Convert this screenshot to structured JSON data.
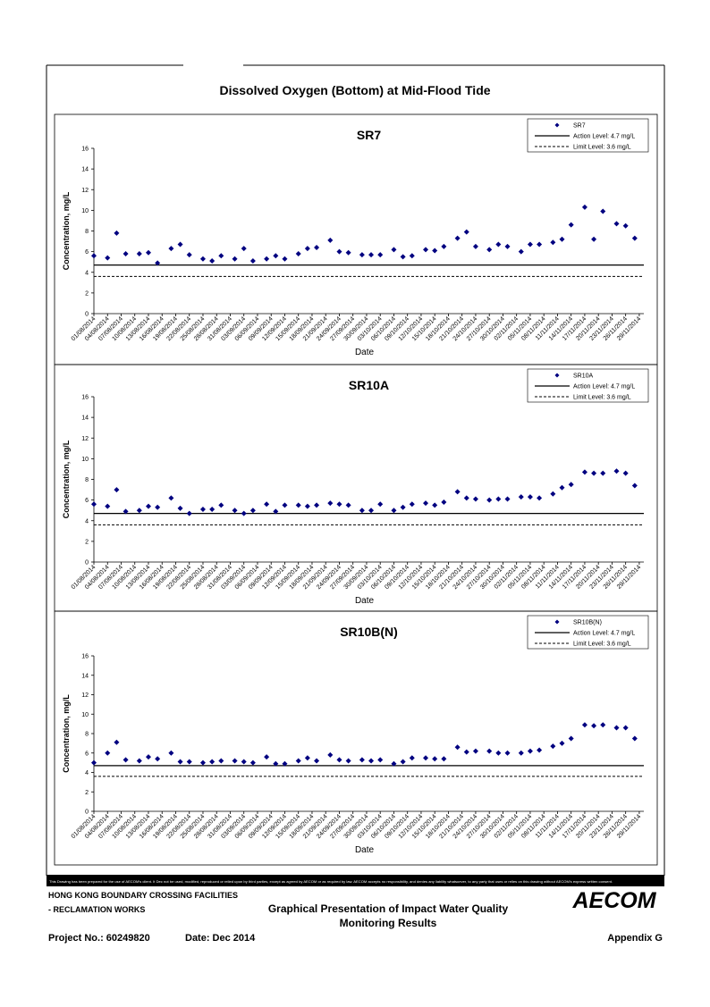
{
  "title": "Dissolved Oxygen (Bottom) at Mid-Flood Tide",
  "disclaimer": "This Drawing has been prepared for the use of AECOM's client. It Dec not be used, modified, reproduced or relied upon by third parties, except as agreed by AECOM or as required by law. AECOM accepts no responsibility, and denies any liability whatsoever, to any party that uses or relies on this drawing without AECOM's express written consent.",
  "footer": {
    "project_line1": "HONG KONG BOUNDARY CROSSING FACILITIES",
    "project_line2": "- RECLAMATION WORKS",
    "heading_line1": "Graphical Presentation of Impact Water Quality",
    "heading_line2": "Monitoring Results",
    "logo": "AECOM",
    "project_no": "Project No.: 60249820",
    "date": "Date: Dec 2014",
    "appendix": "Appendix G"
  },
  "chart_data": [
    {
      "type": "scatter",
      "title": "SR7",
      "x_label": "Date",
      "y_label": "Concentration, mg/L",
      "x": [
        "01/08/2014",
        "04/08/2014",
        "06/08/2014",
        "08/08/2014",
        "11/08/2014",
        "13/08/2014",
        "15/08/2014",
        "18/08/2014",
        "20/08/2014",
        "22/08/2014",
        "25/08/2014",
        "27/08/2014",
        "29/08/2014",
        "01/09/2014",
        "03/09/2014",
        "05/09/2014",
        "08/09/2014",
        "10/09/2014",
        "12/09/2014",
        "15/09/2014",
        "17/09/2014",
        "19/09/2014",
        "22/09/2014",
        "24/09/2014",
        "26/09/2014",
        "29/09/2014",
        "01/10/2014",
        "03/10/2014",
        "06/10/2014",
        "08/10/2014",
        "10/10/2014",
        "13/10/2014",
        "15/10/2014",
        "17/10/2014",
        "20/10/2014",
        "22/10/2014",
        "24/10/2014",
        "27/10/2014",
        "29/10/2014",
        "31/10/2014",
        "03/11/2014",
        "05/11/2014",
        "07/11/2014",
        "10/11/2014",
        "12/11/2014",
        "14/11/2014",
        "17/11/2014",
        "19/11/2014",
        "21/11/2014",
        "24/11/2014",
        "26/11/2014",
        "28/11/2014"
      ],
      "series": [
        {
          "name": "SR7",
          "color": "#000080",
          "values": [
            5.6,
            5.4,
            7.8,
            5.8,
            5.8,
            5.9,
            4.9,
            6.3,
            6.7,
            5.7,
            5.3,
            5.1,
            5.6,
            5.3,
            6.3,
            5.1,
            5.3,
            5.6,
            5.3,
            5.8,
            6.3,
            6.4,
            7.1,
            6.0,
            5.9,
            5.7,
            5.7,
            5.7,
            6.2,
            5.5,
            5.6,
            6.2,
            6.1,
            6.5,
            7.3,
            7.9,
            6.5,
            6.2,
            6.7,
            6.5,
            6.0,
            6.7,
            6.7,
            6.9,
            7.2,
            8.6,
            10.3,
            7.2,
            9.9,
            8.7,
            8.5,
            7.3
          ]
        }
      ],
      "action_level": {
        "name": "Action Level: 4.7 mg/L",
        "value": 4.7
      },
      "limit_level": {
        "name": "Limit Level: 3.6 mg/L",
        "value": 3.6
      },
      "ylim": [
        0,
        16
      ],
      "yticks": [
        0,
        2,
        4,
        6,
        8,
        10,
        12,
        14,
        16
      ],
      "xlim": [
        "01/08/2014",
        "30/11/2014"
      ],
      "xticks": [
        "01/08/2014",
        "04/08/2014",
        "07/08/2014",
        "10/08/2014",
        "13/08/2014",
        "16/08/2014",
        "19/08/2014",
        "22/08/2014",
        "25/08/2014",
        "28/08/2014",
        "31/08/2014",
        "03/09/2014",
        "06/09/2014",
        "09/09/2014",
        "12/09/2014",
        "15/09/2014",
        "18/09/2014",
        "21/09/2014",
        "24/09/2014",
        "27/09/2014",
        "30/09/2014",
        "03/10/2014",
        "06/10/2014",
        "09/10/2014",
        "12/10/2014",
        "15/10/2014",
        "18/10/2014",
        "21/10/2014",
        "24/10/2014",
        "27/10/2014",
        "30/10/2014",
        "02/11/2014",
        "05/11/2014",
        "08/11/2014",
        "11/11/2014",
        "14/11/2014",
        "17/11/2014",
        "20/11/2014",
        "23/11/2014",
        "26/11/2014",
        "29/11/2014"
      ],
      "legend": "upper right"
    },
    {
      "type": "scatter",
      "title": "SR10A",
      "x_label": "Date",
      "y_label": "Concentration, mg/L",
      "x": [
        "01/08/2014",
        "04/08/2014",
        "06/08/2014",
        "08/08/2014",
        "11/08/2014",
        "13/08/2014",
        "15/08/2014",
        "18/08/2014",
        "20/08/2014",
        "22/08/2014",
        "25/08/2014",
        "27/08/2014",
        "29/08/2014",
        "01/09/2014",
        "03/09/2014",
        "05/09/2014",
        "08/09/2014",
        "10/09/2014",
        "12/09/2014",
        "15/09/2014",
        "17/09/2014",
        "19/09/2014",
        "22/09/2014",
        "24/09/2014",
        "26/09/2014",
        "29/09/2014",
        "01/10/2014",
        "03/10/2014",
        "06/10/2014",
        "08/10/2014",
        "10/10/2014",
        "13/10/2014",
        "15/10/2014",
        "17/10/2014",
        "20/10/2014",
        "22/10/2014",
        "24/10/2014",
        "27/10/2014",
        "29/10/2014",
        "31/10/2014",
        "03/11/2014",
        "05/11/2014",
        "07/11/2014",
        "10/11/2014",
        "12/11/2014",
        "14/11/2014",
        "17/11/2014",
        "19/11/2014",
        "21/11/2014",
        "24/11/2014",
        "26/11/2014",
        "28/11/2014"
      ],
      "series": [
        {
          "name": "SR10A",
          "color": "#000080",
          "values": [
            5.6,
            5.4,
            7.0,
            4.9,
            5.0,
            5.4,
            5.3,
            6.2,
            5.2,
            4.7,
            5.1,
            5.1,
            5.5,
            5.0,
            4.7,
            5.0,
            5.6,
            4.9,
            5.5,
            5.5,
            5.4,
            5.5,
            5.7,
            5.6,
            5.5,
            5.0,
            5.0,
            5.6,
            5.0,
            5.3,
            5.6,
            5.7,
            5.5,
            5.8,
            6.8,
            6.2,
            6.1,
            6.0,
            6.1,
            6.1,
            6.3,
            6.3,
            6.2,
            6.6,
            7.2,
            7.5,
            8.7,
            8.6,
            8.6,
            8.8,
            8.6,
            7.4
          ]
        }
      ],
      "action_level": {
        "name": "Action Level: 4.7 mg/L",
        "value": 4.7
      },
      "limit_level": {
        "name": "Limit Level: 3.6 mg/L",
        "value": 3.6
      },
      "ylim": [
        0,
        16
      ],
      "yticks": [
        0,
        2,
        4,
        6,
        8,
        10,
        12,
        14,
        16
      ],
      "xlim": [
        "01/08/2014",
        "30/11/2014"
      ],
      "xticks": [
        "01/08/2014",
        "04/08/2014",
        "07/08/2014",
        "10/08/2014",
        "13/08/2014",
        "16/08/2014",
        "19/08/2014",
        "22/08/2014",
        "25/08/2014",
        "28/08/2014",
        "31/08/2014",
        "03/09/2014",
        "06/09/2014",
        "09/09/2014",
        "12/09/2014",
        "15/09/2014",
        "18/09/2014",
        "21/09/2014",
        "24/09/2014",
        "27/09/2014",
        "30/09/2014",
        "03/10/2014",
        "06/10/2014",
        "09/10/2014",
        "12/10/2014",
        "15/10/2014",
        "18/10/2014",
        "21/10/2014",
        "24/10/2014",
        "27/10/2014",
        "30/10/2014",
        "02/11/2014",
        "05/11/2014",
        "08/11/2014",
        "11/11/2014",
        "14/11/2014",
        "17/11/2014",
        "20/11/2014",
        "23/11/2014",
        "26/11/2014",
        "29/11/2014"
      ],
      "legend": "upper right"
    },
    {
      "type": "scatter",
      "title": "SR10B(N)",
      "x_label": "Date",
      "y_label": "Concentration, mg/L",
      "x": [
        "01/08/2014",
        "04/08/2014",
        "06/08/2014",
        "08/08/2014",
        "11/08/2014",
        "13/08/2014",
        "15/08/2014",
        "18/08/2014",
        "20/08/2014",
        "22/08/2014",
        "25/08/2014",
        "27/08/2014",
        "29/08/2014",
        "01/09/2014",
        "03/09/2014",
        "05/09/2014",
        "08/09/2014",
        "10/09/2014",
        "12/09/2014",
        "15/09/2014",
        "17/09/2014",
        "19/09/2014",
        "22/09/2014",
        "24/09/2014",
        "26/09/2014",
        "29/09/2014",
        "01/10/2014",
        "03/10/2014",
        "06/10/2014",
        "08/10/2014",
        "10/10/2014",
        "13/10/2014",
        "15/10/2014",
        "17/10/2014",
        "20/10/2014",
        "22/10/2014",
        "24/10/2014",
        "27/10/2014",
        "29/10/2014",
        "31/10/2014",
        "03/11/2014",
        "05/11/2014",
        "07/11/2014",
        "10/11/2014",
        "12/11/2014",
        "14/11/2014",
        "17/11/2014",
        "19/11/2014",
        "21/11/2014",
        "24/11/2014",
        "26/11/2014",
        "28/11/2014"
      ],
      "series": [
        {
          "name": "SR10B(N)",
          "color": "#000080",
          "values": [
            5.0,
            6.0,
            7.1,
            5.3,
            5.2,
            5.6,
            5.4,
            6.0,
            5.1,
            5.1,
            5.0,
            5.1,
            5.2,
            5.2,
            5.1,
            5.0,
            5.6,
            4.9,
            4.9,
            5.2,
            5.5,
            5.2,
            5.8,
            5.3,
            5.2,
            5.3,
            5.2,
            5.3,
            4.9,
            5.1,
            5.5,
            5.5,
            5.4,
            5.4,
            6.6,
            6.1,
            6.2,
            6.2,
            6.0,
            6.0,
            6.0,
            6.2,
            6.3,
            6.7,
            7.0,
            7.5,
            8.9,
            8.8,
            8.9,
            8.6,
            8.6,
            7.5
          ]
        }
      ],
      "action_level": {
        "name": "Action Level: 4.7 mg/L",
        "value": 4.7
      },
      "limit_level": {
        "name": "Limit Level: 3.6 mg/L",
        "value": 3.6
      },
      "ylim": [
        0,
        16
      ],
      "yticks": [
        0,
        2,
        4,
        6,
        8,
        10,
        12,
        14,
        16
      ],
      "xlim": [
        "01/08/2014",
        "30/11/2014"
      ],
      "xticks": [
        "01/08/2014",
        "04/08/2014",
        "07/08/2014",
        "10/08/2014",
        "13/08/2014",
        "16/08/2014",
        "19/08/2014",
        "22/08/2014",
        "25/08/2014",
        "28/08/2014",
        "31/08/2014",
        "03/09/2014",
        "06/09/2014",
        "09/09/2014",
        "12/09/2014",
        "15/09/2014",
        "18/09/2014",
        "21/09/2014",
        "24/09/2014",
        "27/09/2014",
        "30/09/2014",
        "03/10/2014",
        "06/10/2014",
        "09/10/2014",
        "12/10/2014",
        "15/10/2014",
        "18/10/2014",
        "21/10/2014",
        "24/10/2014",
        "27/10/2014",
        "30/10/2014",
        "02/11/2014",
        "05/11/2014",
        "08/11/2014",
        "11/11/2014",
        "14/11/2014",
        "17/11/2014",
        "20/11/2014",
        "23/11/2014",
        "26/11/2014",
        "29/11/2014"
      ],
      "legend": "upper right"
    }
  ]
}
